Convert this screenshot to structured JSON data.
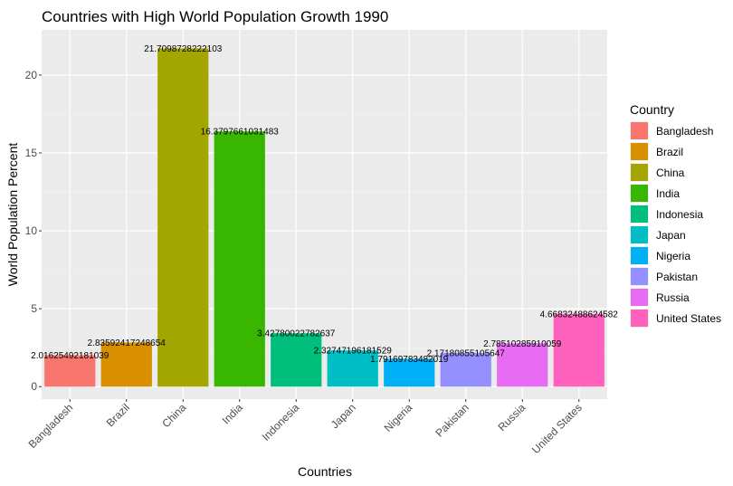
{
  "chart_data": {
    "type": "bar",
    "title": "Countries with High World Population Growth 1990",
    "xlabel": "Countries",
    "ylabel": "World Population Percent",
    "ylim": [
      -0.8,
      22.9
    ],
    "yticks": [
      0,
      5,
      10,
      15,
      20
    ],
    "grid": true,
    "legend": {
      "title": "Country",
      "placement": "right"
    },
    "categories": [
      "Bangladesh",
      "Brazil",
      "China",
      "India",
      "Indonesia",
      "Japan",
      "Nigeria",
      "Pakistan",
      "Russia",
      "United States"
    ],
    "values": [
      2.01625492181039,
      2.83592417248654,
      21.7098728222103,
      16.3797661031483,
      3.42780022782637,
      2.32747196181529,
      1.79169783482019,
      2.17180855105647,
      2.78510285910059,
      4.66832488624582
    ],
    "data_labels": [
      "2.01625492181039",
      "2.83592417248654",
      "21.7098728222103",
      "16.3797661031483",
      "3.42780022782637",
      "2.32747196181529",
      "1.79169783482019",
      "2.17180855105647",
      "2.78510285910059",
      "4.66832488624582"
    ],
    "colors": [
      "#F8766D",
      "#D89000",
      "#A3A500",
      "#39B600",
      "#00BF7D",
      "#00BFC4",
      "#00B0F6",
      "#9590FF",
      "#E76BF3",
      "#FF62BC"
    ]
  }
}
